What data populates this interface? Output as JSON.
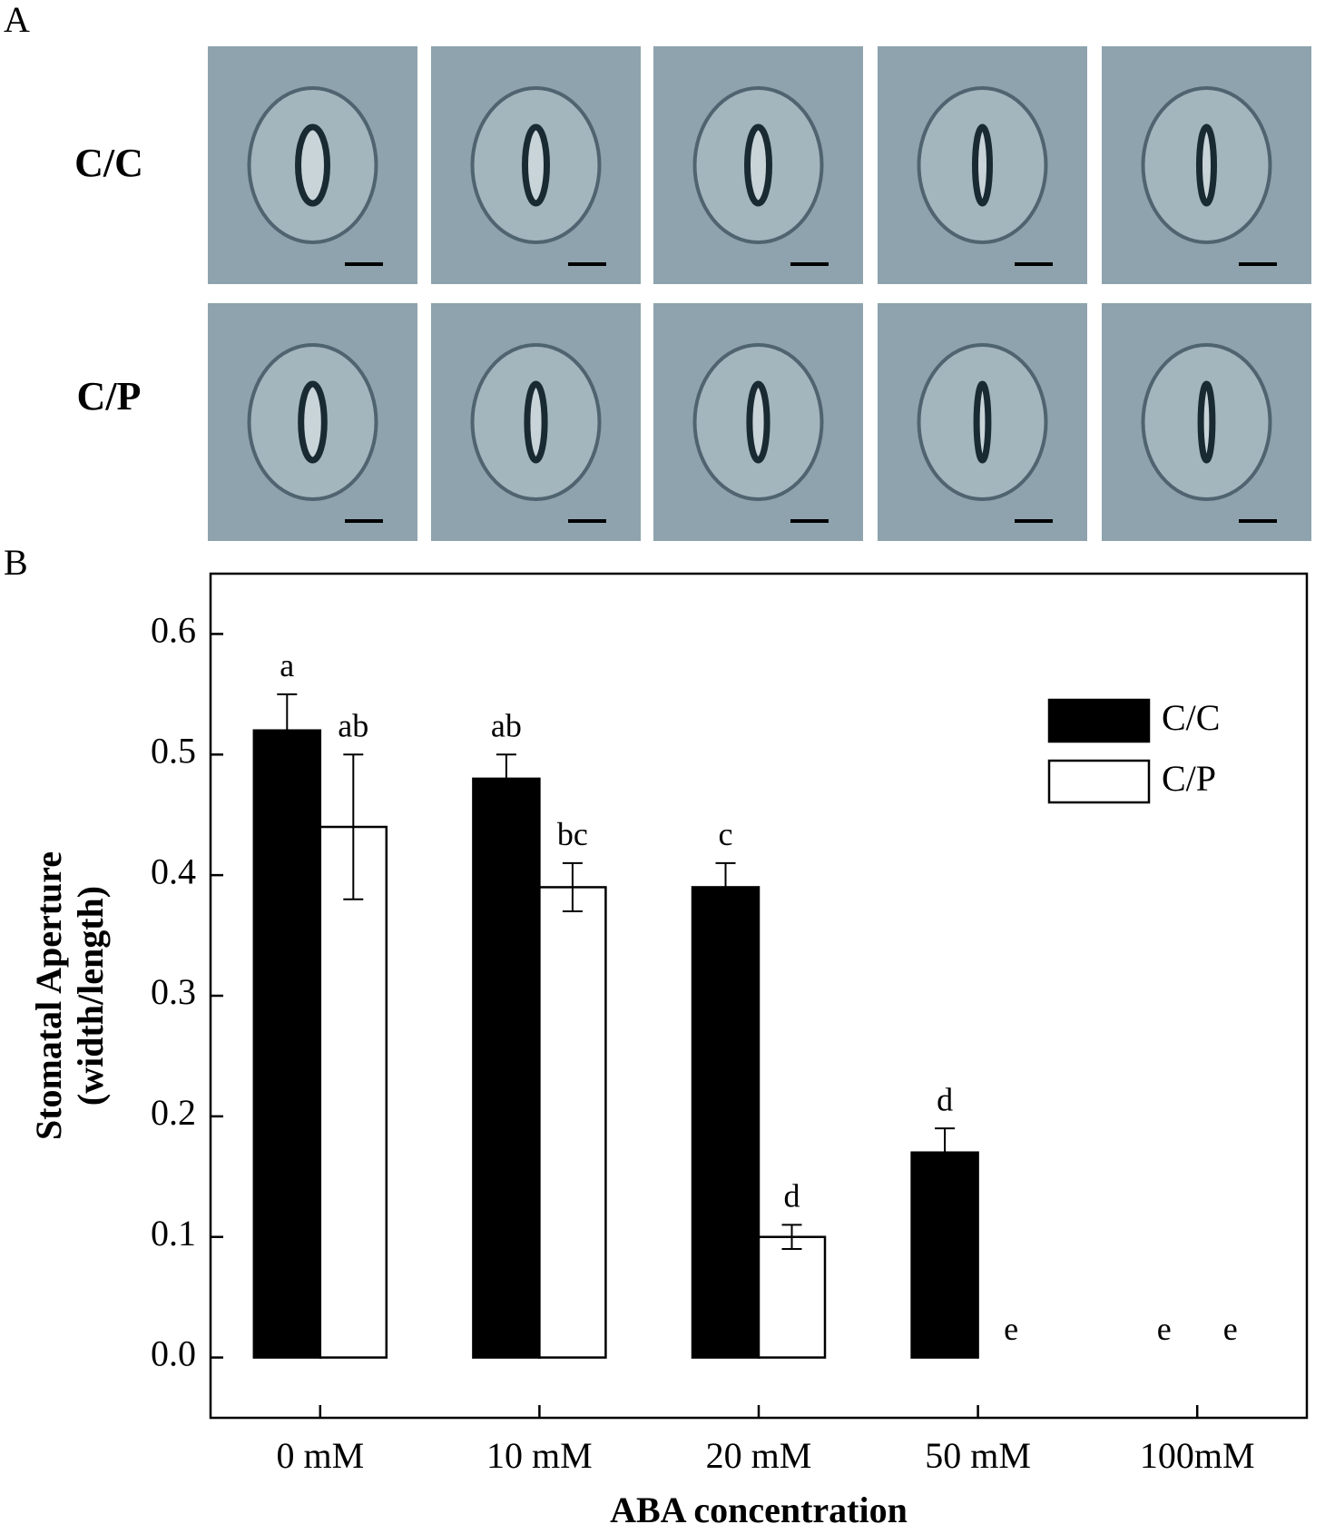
{
  "panel_a": {
    "label": "A",
    "row_labels": [
      "C/C",
      "C/P"
    ]
  },
  "chart_data": {
    "type": "bar",
    "panel_label": "B",
    "x_label": "ABA concentration",
    "y_label": [
      "Stomatal Aperture",
      "(width/length)"
    ],
    "categories": [
      "0 mM",
      "10 mM",
      "20 mM",
      "50 mM",
      "100mM"
    ],
    "series": [
      {
        "name": "C/C",
        "color": "#000000",
        "values": [
          0.52,
          0.48,
          0.39,
          0.17,
          0
        ],
        "errors": [
          0.03,
          0.02,
          0.02,
          0.02,
          null
        ],
        "letters": [
          "a",
          "ab",
          "c",
          "d",
          "e"
        ]
      },
      {
        "name": "C/P",
        "color": "#ffffff",
        "values": [
          0.44,
          0.39,
          0.1,
          0,
          0
        ],
        "errors": [
          0.06,
          0.02,
          0.01,
          null,
          null
        ],
        "letters": [
          "ab",
          "bc",
          "d",
          "e",
          "e"
        ]
      }
    ],
    "ylim": [
      -0.05,
      0.65
    ],
    "yticks": [
      {
        "value": 0,
        "label": "0.0"
      },
      0.1,
      0.2,
      0.3,
      0.4,
      0.5,
      0.6
    ],
    "legend": "upper right"
  }
}
